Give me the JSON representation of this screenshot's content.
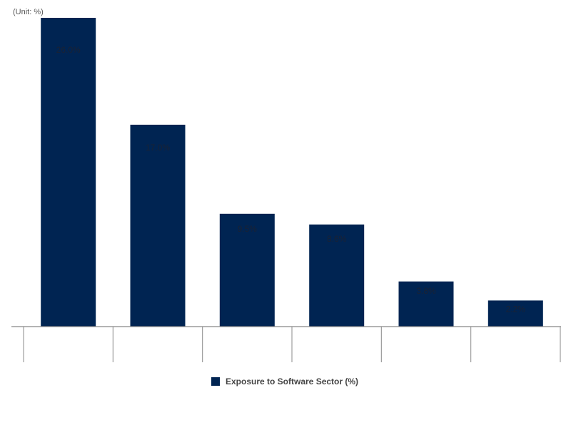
{
  "chart_data": {
    "type": "bar",
    "unit_label": "(Unit: %)",
    "categories": [
      "",
      "",
      "",
      "",
      "",
      ""
    ],
    "data_labels": [
      "26.0%",
      "17.0%",
      "9.5%",
      "8.6%",
      "3.8%",
      "2.2%"
    ],
    "series": [
      {
        "name": "Exposure to Software Sector (%)",
        "values": [
          26.0,
          17.0,
          9.5,
          8.6,
          3.8,
          2.2
        ]
      }
    ],
    "ylim": [
      0,
      26.0
    ],
    "grid": false,
    "legend_position": "bottom-center",
    "colors": {
      "bar": "#002452",
      "axis": "#888888",
      "label": "#1a2233"
    }
  }
}
